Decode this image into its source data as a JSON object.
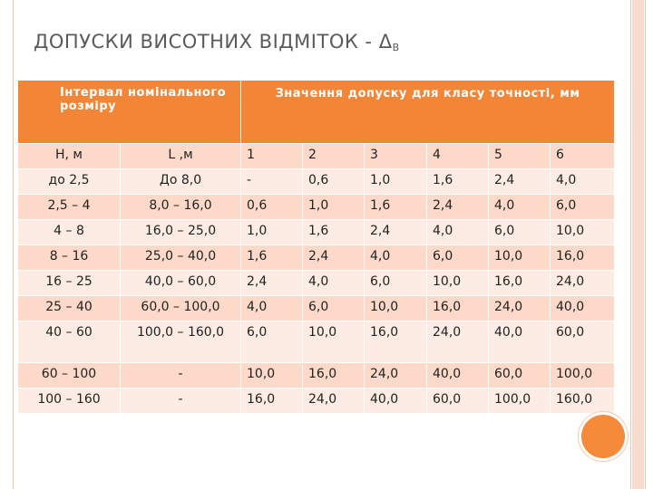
{
  "slide": {
    "title_main": "ДОПУСКИ ВИСОТНИХ ВІДМІТОК - Δ",
    "title_sub": "В"
  },
  "table": {
    "header_interval": "Інтервал номінального розміру",
    "header_values": "Значення  допуску для класу точності, мм",
    "subheaders": [
      "Н, м",
      "L ,м",
      "1",
      "2",
      "3",
      "4",
      "5",
      "6"
    ],
    "rows": [
      [
        "до 2,5",
        "До 8,0",
        "-",
        "0,6",
        "1,0",
        "1,6",
        "2,4",
        "4,0"
      ],
      [
        "2,5 – 4",
        "8,0 – 16,0",
        "0,6",
        "1,0",
        "1,6",
        "2,4",
        "4,0",
        "6,0"
      ],
      [
        "4 – 8",
        "16,0 – 25,0",
        "1,0",
        "1,6",
        "2,4",
        "4,0",
        "6,0",
        "10,0"
      ],
      [
        "8 – 16",
        "25,0 – 40,0",
        "1,6",
        "2,4",
        "4,0",
        "6,0",
        "10,0",
        "16,0"
      ],
      [
        "16 – 25",
        "40,0 – 60,0",
        "2,4",
        "4,0",
        "6,0",
        "10,0",
        "16,0",
        "24,0"
      ],
      [
        "25 – 40",
        "60,0 – 100,0",
        "4,0",
        "6,0",
        "10,0",
        "16,0",
        "24,0",
        "40,0"
      ],
      [
        "40 – 60",
        "100,0 – 160,0",
        "6,0",
        "10,0",
        "16,0",
        "24,0",
        "40,0",
        "60,0"
      ],
      [
        "60 – 100",
        "-",
        "10,0",
        "16,0",
        "24,0",
        "40,0",
        "60,0",
        "100,0"
      ],
      [
        "100 – 160",
        "-",
        "16,0",
        "24,0",
        "40,0",
        "60,0",
        "100,0",
        "160,0"
      ]
    ]
  },
  "colors": {
    "header_bg": "#f28536",
    "row_odd": "#fcd9c8",
    "row_even": "#fdece3",
    "accent_circle": "#f58a3a"
  }
}
